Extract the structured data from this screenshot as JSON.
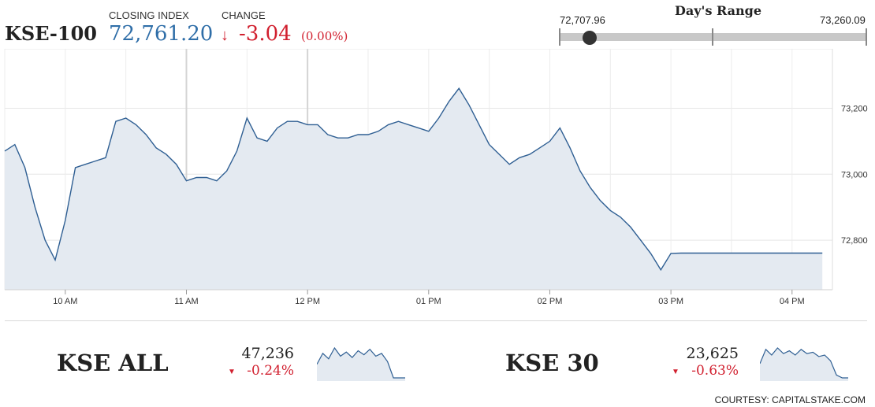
{
  "header": {
    "index_name": "KSE-100",
    "closing_label": "CLOSING INDEX",
    "closing_value": "72,761.20",
    "change_label": "CHANGE",
    "change_arrow": "↓",
    "change_value": "-3.04",
    "change_pct": "(0.00%)"
  },
  "day_range": {
    "title": "Day's Range",
    "low_label": "72,707.96",
    "high_label": "73,260.09",
    "low": 72707.96,
    "high": 73260.09,
    "current": 72761.2
  },
  "colors": {
    "line": "#2f5f93",
    "fill": "#e4eaf1",
    "negative": "#d1202f",
    "accent": "#2f6ea8"
  },
  "chart_data": {
    "type": "area",
    "xlabel": "",
    "ylabel": "",
    "ylim": [
      72650,
      73380
    ],
    "grid": true,
    "y_ticks": [
      73200,
      73000,
      72800
    ],
    "y_tick_labels": [
      "73,200",
      "73,000",
      "72,800"
    ],
    "x_ticks": [
      "10 AM",
      "11 AM",
      "12 PM",
      "01 PM",
      "02 PM",
      "03 PM",
      "04 PM"
    ],
    "series": [
      {
        "x": [
          "09:30",
          "09:35",
          "09:40",
          "09:45",
          "09:50",
          "09:55",
          "10:00",
          "10:05",
          "10:10",
          "10:15",
          "10:20",
          "10:25",
          "10:30",
          "10:35",
          "10:40",
          "10:45",
          "10:50",
          "10:55",
          "11:00",
          "11:05",
          "11:10",
          "11:15",
          "11:20",
          "11:25",
          "11:30",
          "11:35",
          "11:40",
          "11:45",
          "11:50",
          "11:55",
          "12:00",
          "12:05",
          "12:10",
          "12:15",
          "12:20",
          "12:25",
          "12:30",
          "12:35",
          "12:40",
          "12:45",
          "12:50",
          "12:55",
          "13:00",
          "13:05",
          "13:10",
          "13:15",
          "13:20",
          "13:25",
          "13:30",
          "13:35",
          "13:40",
          "13:45",
          "13:50",
          "13:55",
          "14:00",
          "14:05",
          "14:10",
          "14:15",
          "14:20",
          "14:25",
          "14:30",
          "14:35",
          "14:40",
          "14:45",
          "14:50",
          "14:55",
          "15:00",
          "15:05",
          "15:10",
          "15:15",
          "15:20",
          "15:25",
          "15:30",
          "15:35",
          "15:40",
          "15:45",
          "15:50",
          "15:55",
          "16:00",
          "16:05",
          "16:10",
          "16:15"
        ],
        "values": [
          73070,
          73090,
          73020,
          72900,
          72800,
          72740,
          72860,
          73020,
          73030,
          73040,
          73050,
          73160,
          73170,
          73150,
          73120,
          73080,
          73060,
          73030,
          72980,
          72990,
          72990,
          72980,
          73010,
          73070,
          73170,
          73110,
          73100,
          73140,
          73160,
          73160,
          73150,
          73150,
          73120,
          73110,
          73110,
          73120,
          73120,
          73130,
          73150,
          73160,
          73150,
          73140,
          73130,
          73170,
          73220,
          73260,
          73210,
          73150,
          73090,
          73060,
          73030,
          73050,
          73060,
          73080,
          73100,
          73140,
          73080,
          73010,
          72960,
          72920,
          72890,
          72870,
          72840,
          72800,
          72760,
          72710,
          72760,
          72761,
          72761,
          72761,
          72761,
          72761,
          72761,
          72761,
          72761,
          72761,
          72761,
          72761,
          72761,
          72761,
          72761,
          72761
        ]
      }
    ]
  },
  "kse_all": {
    "name": "KSE ALL",
    "value": "47,236",
    "arrow": "▼",
    "change": "-0.24%",
    "spark": [
      100,
      60,
      80,
      40,
      70,
      55,
      75,
      50,
      65,
      45,
      70,
      60,
      90,
      150,
      150,
      150
    ]
  },
  "kse_30": {
    "name": "KSE 30",
    "value": "23,625",
    "arrow": "▼",
    "change": "-0.63%",
    "spark": [
      90,
      40,
      60,
      35,
      55,
      45,
      60,
      40,
      55,
      50,
      65,
      60,
      80,
      130,
      140,
      140
    ]
  },
  "credit": "COURTESY: CAPITALSTAKE.COM"
}
